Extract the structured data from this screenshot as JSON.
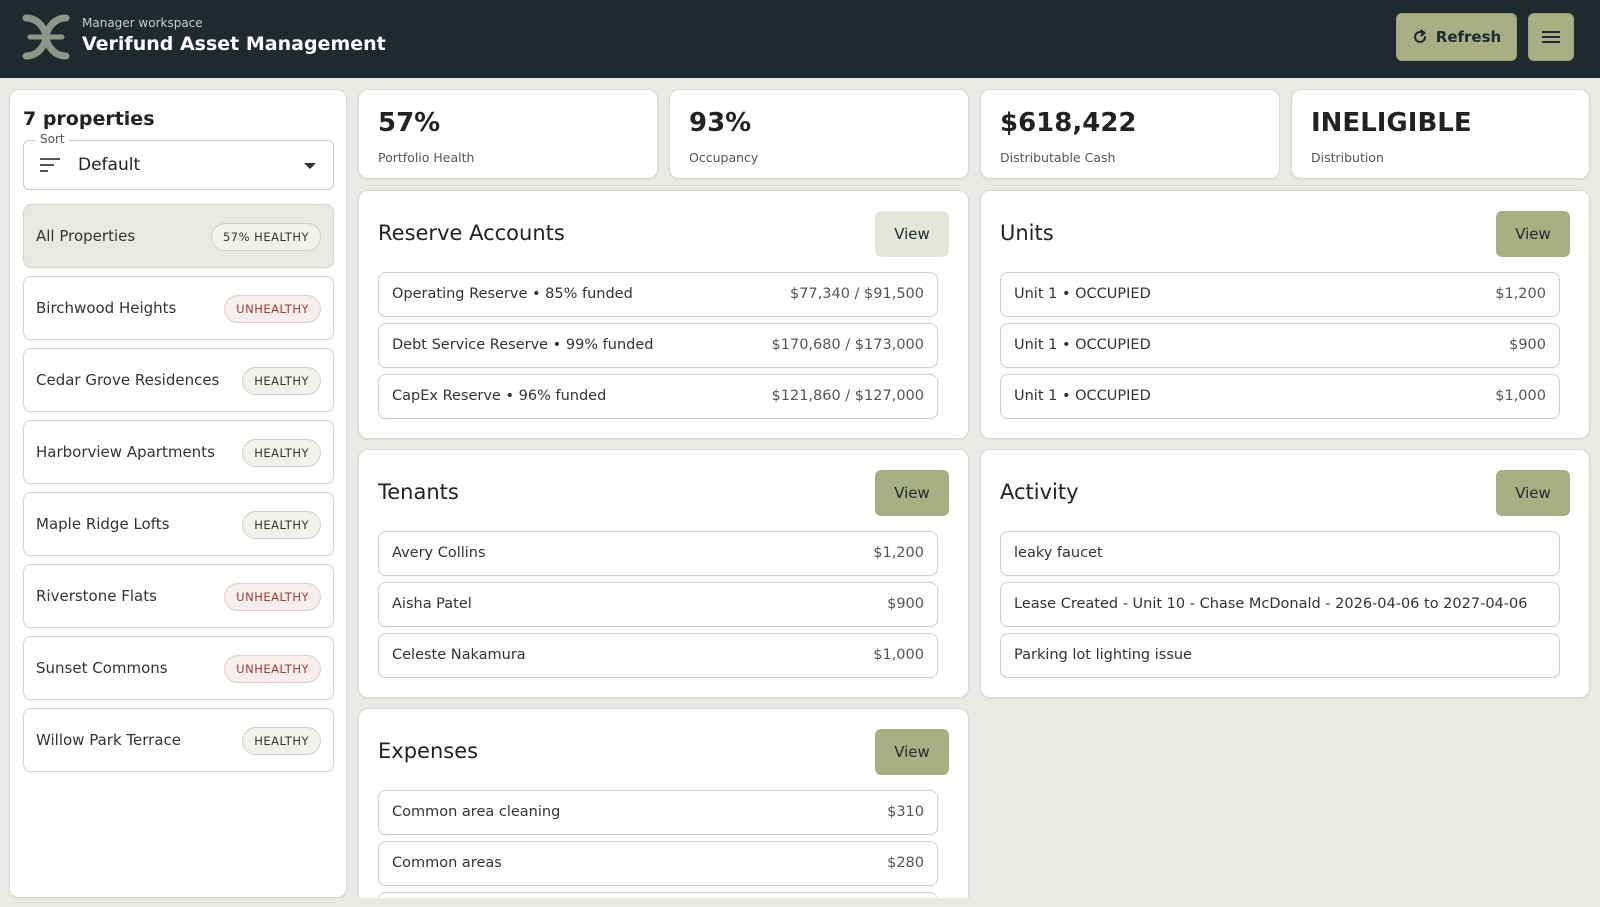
{
  "header": {
    "subtitle": "Manager workspace",
    "title": "Verifund Asset Management",
    "refresh_label": "Refresh",
    "logo_icon": "brand-logo-icon",
    "menu_icon": "hamburger-menu-icon"
  },
  "sidebar": {
    "count_label": "7 properties",
    "sort": {
      "label": "Sort",
      "value": "Default"
    },
    "items": [
      {
        "name": "All Properties",
        "badge": "57% HEALTHY",
        "status": "neutral"
      },
      {
        "name": "Birchwood Heights",
        "badge": "UNHEALTHY",
        "status": "unhealthy"
      },
      {
        "name": "Cedar Grove Residences",
        "badge": "HEALTHY",
        "status": "healthy"
      },
      {
        "name": "Harborview Apartments",
        "badge": "HEALTHY",
        "status": "healthy"
      },
      {
        "name": "Maple Ridge Lofts",
        "badge": "HEALTHY",
        "status": "healthy"
      },
      {
        "name": "Riverstone Flats",
        "badge": "UNHEALTHY",
        "status": "unhealthy"
      },
      {
        "name": "Sunset Commons",
        "badge": "UNHEALTHY",
        "status": "unhealthy"
      },
      {
        "name": "Willow Park Terrace",
        "badge": "HEALTHY",
        "status": "healthy"
      }
    ]
  },
  "stats": [
    {
      "value": "57%",
      "label": "Portfolio Health"
    },
    {
      "value": "93%",
      "label": "Occupancy"
    },
    {
      "value": "$618,422",
      "label": "Distributable Cash"
    },
    {
      "value": "INELIGIBLE",
      "label": "Distribution"
    }
  ],
  "reserve_accounts": {
    "title": "Reserve Accounts",
    "view_label": "View",
    "rows": [
      {
        "label": "Operating Reserve • 85% funded",
        "value": "$77,340 / $91,500"
      },
      {
        "label": "Debt Service Reserve • 99% funded",
        "value": "$170,680 / $173,000"
      },
      {
        "label": "CapEx Reserve • 96% funded",
        "value": "$121,860 / $127,000"
      }
    ]
  },
  "units": {
    "title": "Units",
    "view_label": "View",
    "rows": [
      {
        "label": "Unit 1 • OCCUPIED",
        "value": "$1,200"
      },
      {
        "label": "Unit 1 • OCCUPIED",
        "value": "$900"
      },
      {
        "label": "Unit 1 • OCCUPIED",
        "value": "$1,000"
      }
    ]
  },
  "tenants": {
    "title": "Tenants",
    "view_label": "View",
    "rows": [
      {
        "label": "Avery Collins",
        "value": "$1,200"
      },
      {
        "label": "Aisha Patel",
        "value": "$900"
      },
      {
        "label": "Celeste Nakamura",
        "value": "$1,000"
      }
    ]
  },
  "activity": {
    "title": "Activity",
    "view_label": "View",
    "rows": [
      {
        "label": "leaky faucet"
      },
      {
        "label": "Lease Created - Unit 10 - Chase McDonald - 2026-04-06 to 2027-04-06"
      },
      {
        "label": "Parking lot lighting issue"
      }
    ]
  },
  "expenses": {
    "title": "Expenses",
    "view_label": "View",
    "rows": [
      {
        "label": "Common area cleaning",
        "value": "$310"
      },
      {
        "label": "Common areas",
        "value": "$280"
      }
    ]
  },
  "colors": {
    "topbar": "#1f2a2e",
    "accent": "#a9ae84",
    "background": "#e8eae6",
    "unhealthy": "#a33a33"
  }
}
